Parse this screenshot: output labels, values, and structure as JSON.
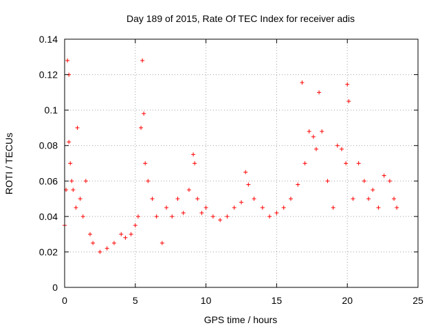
{
  "chart_data": {
    "type": "scatter",
    "title": "Day 189 of 2015, Rate Of TEC Index for receiver adis",
    "xlabel": "GPS time / hours",
    "ylabel": "ROTI / TECUs",
    "xlim": [
      0,
      25
    ],
    "ylim": [
      0,
      0.14
    ],
    "xticks": [
      "0",
      "5",
      "10",
      "15",
      "20",
      "25"
    ],
    "yticks": [
      "0",
      "0.02",
      "0.04",
      "0.06",
      "0.08",
      "0.1",
      "0.12",
      "0.14"
    ],
    "grid": true,
    "marker": "plus",
    "color": "#ff0000",
    "x": [
      0.0,
      0.1,
      0.2,
      0.3,
      0.3,
      0.4,
      0.5,
      0.6,
      0.8,
      0.9,
      1.1,
      1.3,
      1.5,
      1.8,
      2.0,
      2.5,
      3.0,
      3.5,
      4.0,
      4.3,
      4.7,
      5.0,
      5.2,
      5.4,
      5.5,
      5.6,
      5.7,
      5.9,
      6.2,
      6.5,
      6.9,
      7.2,
      7.6,
      8.0,
      8.4,
      8.8,
      9.1,
      9.2,
      9.4,
      9.7,
      10.0,
      10.5,
      11.0,
      11.5,
      12.0,
      12.5,
      12.8,
      13.0,
      13.4,
      14.0,
      14.5,
      15.0,
      15.5,
      16.0,
      16.5,
      16.8,
      17.0,
      17.3,
      17.6,
      17.8,
      18.0,
      18.2,
      18.6,
      19.0,
      19.3,
      19.6,
      19.9,
      20.0,
      20.1,
      20.4,
      20.8,
      21.2,
      21.5,
      21.8,
      22.2,
      22.6,
      23.0,
      23.3,
      23.5
    ],
    "y": [
      0.035,
      0.055,
      0.128,
      0.12,
      0.082,
      0.07,
      0.06,
      0.055,
      0.045,
      0.09,
      0.05,
      0.04,
      0.06,
      0.03,
      0.025,
      0.02,
      0.022,
      0.025,
      0.03,
      0.028,
      0.03,
      0.035,
      0.04,
      0.09,
      0.128,
      0.098,
      0.07,
      0.06,
      0.05,
      0.04,
      0.025,
      0.045,
      0.04,
      0.05,
      0.042,
      0.055,
      0.075,
      0.07,
      0.05,
      0.042,
      0.045,
      0.04,
      0.038,
      0.04,
      0.045,
      0.048,
      0.065,
      0.058,
      0.05,
      0.045,
      0.04,
      0.042,
      0.045,
      0.05,
      0.058,
      0.1155,
      0.07,
      0.088,
      0.085,
      0.078,
      0.11,
      0.088,
      0.06,
      0.045,
      0.08,
      0.078,
      0.07,
      0.1145,
      0.105,
      0.05,
      0.07,
      0.06,
      0.05,
      0.055,
      0.045,
      0.063,
      0.06,
      0.05,
      0.045
    ]
  }
}
